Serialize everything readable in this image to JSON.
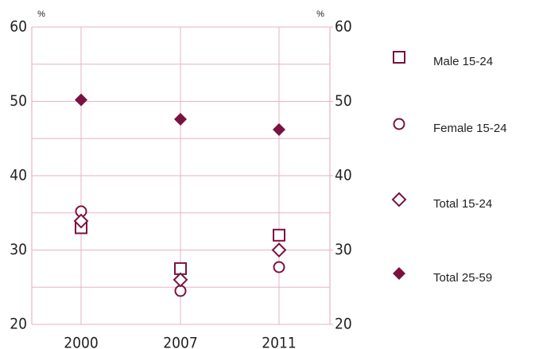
{
  "chart_data": {
    "type": "scatter",
    "y_unit": "%",
    "categories": [
      "2000",
      "2007",
      "2011"
    ],
    "series": [
      {
        "name": "Male 15-24",
        "color": "#7a1240",
        "marker": "square",
        "filled": false,
        "values": [
          33,
          27.5,
          32
        ]
      },
      {
        "name": "Female 15-24",
        "color": "#7a1240",
        "marker": "circle",
        "filled": false,
        "values": [
          35.2,
          24.5,
          27.7
        ]
      },
      {
        "name": "Total 15-24",
        "color": "#7a1240",
        "marker": "diamond",
        "filled": false,
        "values": [
          33.9,
          26,
          30
        ]
      },
      {
        "name": "Total 25-59",
        "color": "#7a1240",
        "marker": "diamond",
        "filled": true,
        "values": [
          50.2,
          47.6,
          46.2
        ]
      }
    ],
    "ylim": [
      20,
      60
    ],
    "yticks": [
      20,
      30,
      40,
      50,
      60
    ],
    "yminorticks": [
      25,
      35,
      45,
      55
    ],
    "y2lim": [
      20,
      60
    ],
    "y2ticks": [
      20,
      30,
      40,
      50,
      60
    ],
    "grid": true,
    "grid_color": "#e6b3c4",
    "legend": "right"
  }
}
